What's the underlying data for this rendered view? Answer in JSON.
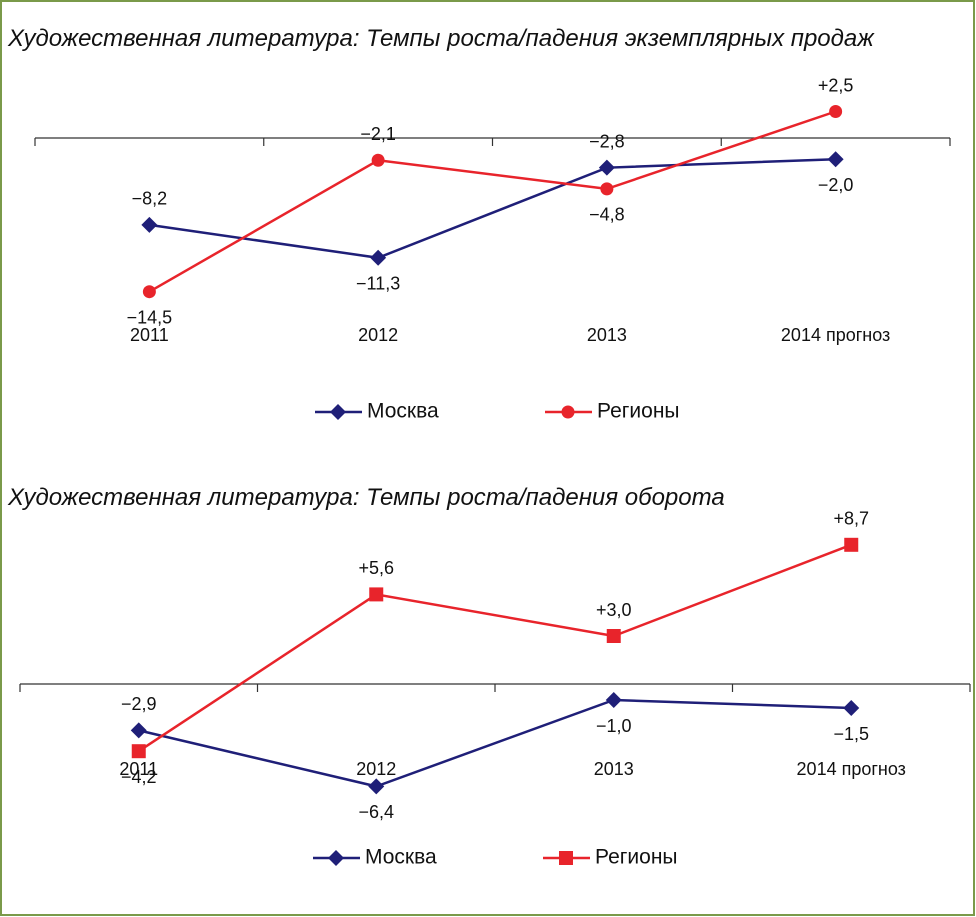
{
  "chart_data": [
    {
      "type": "line",
      "title": "Художественная литература: Темпы роста/падения экземплярных продаж",
      "categories": [
        "2011",
        "2012",
        "2013",
        "2014 прогноз"
      ],
      "ylim": [
        -16,
        4
      ],
      "series": [
        {
          "name": "Москва",
          "color": "#1f1f78",
          "marker": "diamond",
          "values": [
            -8.2,
            -11.3,
            -2.8,
            -2.0
          ],
          "value_labels": [
            "−8,2",
            "−11,3",
            "−2,8",
            "−2,0"
          ]
        },
        {
          "name": "Регионы",
          "color": "#e8242b",
          "marker": "circle",
          "values": [
            -14.5,
            -2.1,
            -4.8,
            2.5
          ],
          "value_labels": [
            "−14,5",
            "−2,1",
            "−4,8",
            "+2,5"
          ]
        }
      ]
    },
    {
      "type": "line",
      "title": "Художественная литература: Темпы роста/падения оборота",
      "categories": [
        "2011",
        "2012",
        "2013",
        "2014 прогноз"
      ],
      "ylim": [
        -8,
        10
      ],
      "series": [
        {
          "name": "Москва",
          "color": "#1f1f78",
          "marker": "diamond",
          "values": [
            -2.9,
            -6.4,
            -1.0,
            -1.5
          ],
          "value_labels": [
            "−2,9",
            "−6,4",
            "−1,0",
            "−1,5"
          ]
        },
        {
          "name": "Регионы",
          "color": "#e8242b",
          "marker": "square",
          "values": [
            -4.2,
            5.6,
            3.0,
            8.7
          ],
          "value_labels": [
            "−4,2",
            "+5,6",
            "+3,0",
            "+8,7"
          ]
        }
      ]
    }
  ]
}
